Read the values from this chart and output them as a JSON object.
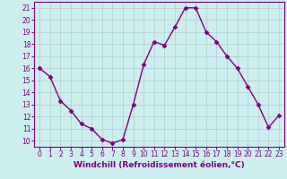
{
  "x": [
    0,
    1,
    2,
    3,
    4,
    5,
    6,
    7,
    8,
    9,
    10,
    11,
    12,
    13,
    14,
    15,
    16,
    17,
    18,
    19,
    20,
    21,
    22,
    23
  ],
  "y": [
    16.0,
    15.3,
    13.3,
    12.5,
    11.4,
    11.0,
    10.1,
    9.8,
    10.1,
    13.0,
    16.3,
    18.2,
    17.9,
    19.4,
    21.0,
    21.0,
    19.0,
    18.2,
    17.0,
    16.0,
    14.5,
    13.0,
    11.1,
    12.1
  ],
  "line_color": "#800080",
  "marker": "D",
  "marker_size": 2.5,
  "bg_color": "#cceeee",
  "grid_color": "#b0cccc",
  "xlabel": "Windchill (Refroidissement éolien,°C)",
  "ylabel": "",
  "xlim": [
    -0.5,
    23.5
  ],
  "ylim": [
    9.5,
    21.5
  ],
  "yticks": [
    10,
    11,
    12,
    13,
    14,
    15,
    16,
    17,
    18,
    19,
    20,
    21
  ],
  "xticks": [
    0,
    1,
    2,
    3,
    4,
    5,
    6,
    7,
    8,
    9,
    10,
    11,
    12,
    13,
    14,
    15,
    16,
    17,
    18,
    19,
    20,
    21,
    22,
    23
  ],
  "tick_fontsize": 5.5,
  "xlabel_fontsize": 6.5,
  "line_width": 1.0
}
